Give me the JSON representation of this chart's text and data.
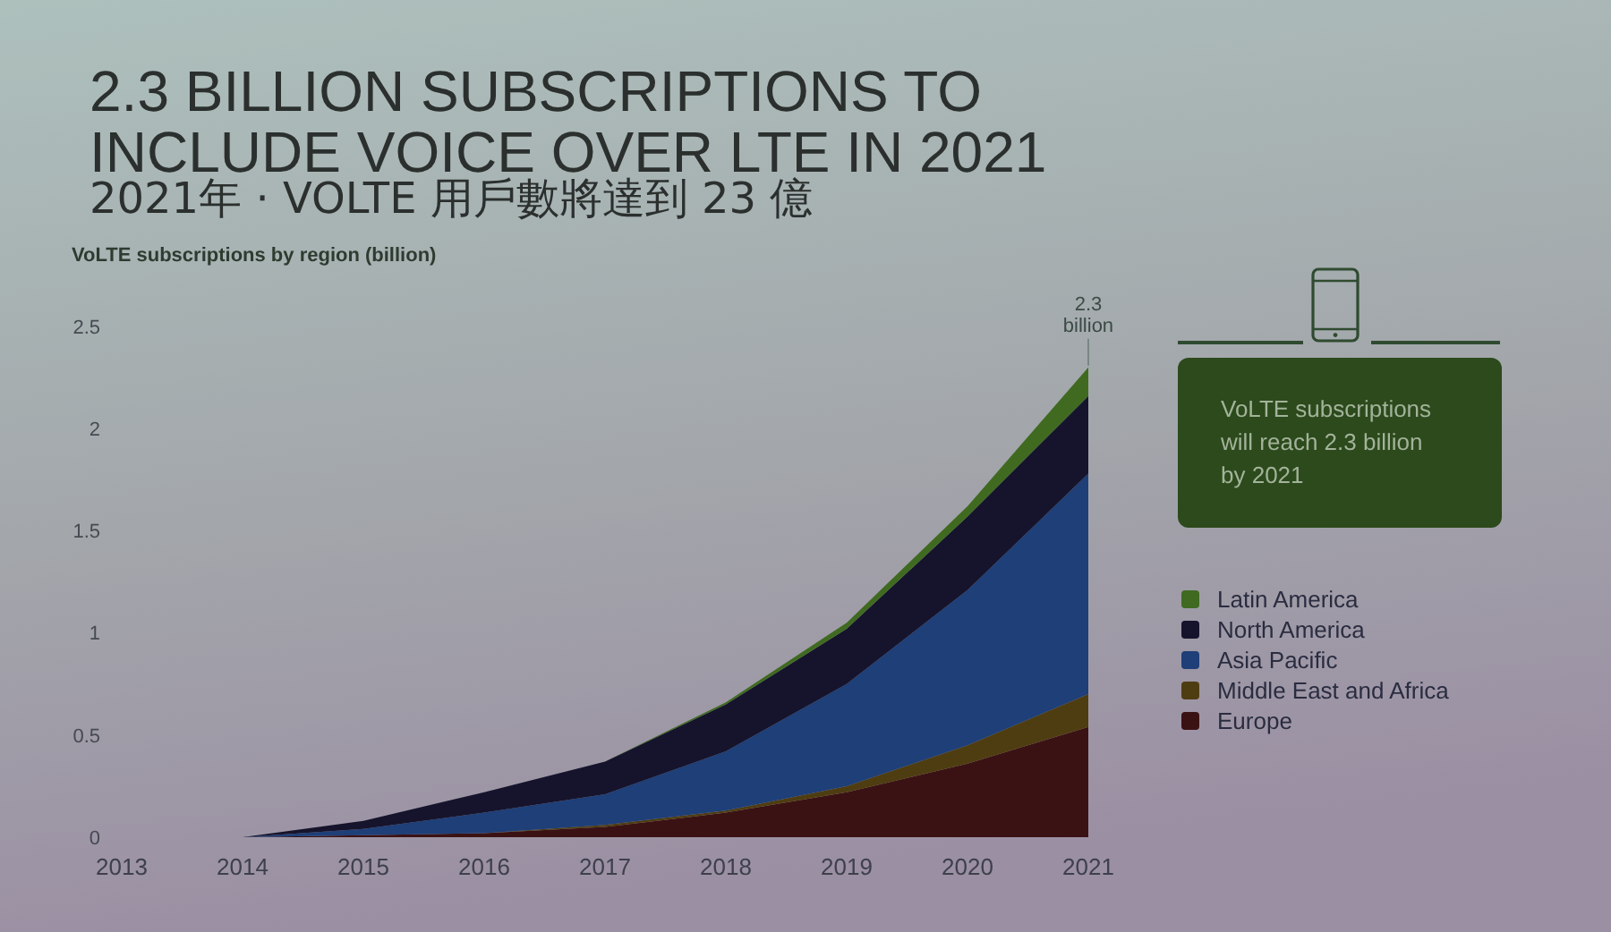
{
  "chart_data": {
    "type": "area",
    "title": "2.3 BILLION SUBSCRIPTIONS TO INCLUDE VOICE OVER LTE IN 2021",
    "subtitle": "2021年 · VOLTE 用戶數將達到 23 億",
    "ylabel": "VoLTE subscriptions by region (billion)",
    "x": [
      2014,
      2015,
      2016,
      2017,
      2018,
      2019,
      2020,
      2021
    ],
    "xlim": [
      2013,
      2021
    ],
    "xticks": [
      2013,
      2014,
      2015,
      2016,
      2017,
      2018,
      2019,
      2020,
      2021
    ],
    "ylim": [
      0,
      2.5
    ],
    "yticks": [
      0,
      0.5,
      1,
      1.5,
      2,
      2.5
    ],
    "stacked": true,
    "legend": "right",
    "series": [
      {
        "name": "Europe",
        "color": "#3b1214",
        "values": [
          0,
          0.01,
          0.02,
          0.05,
          0.12,
          0.22,
          0.36,
          0.54
        ]
      },
      {
        "name": "Middle East and Africa",
        "color": "#4f3d12",
        "values": [
          0,
          0,
          0,
          0.01,
          0.01,
          0.03,
          0.09,
          0.16
        ]
      },
      {
        "name": "Asia Pacific",
        "color": "#1e3f78",
        "values": [
          0,
          0.03,
          0.1,
          0.15,
          0.29,
          0.5,
          0.76,
          1.08
        ]
      },
      {
        "name": "North America",
        "color": "#16142c",
        "values": [
          0,
          0.04,
          0.1,
          0.16,
          0.23,
          0.27,
          0.36,
          0.38
        ]
      },
      {
        "name": "Latin America",
        "color": "#3f6a20",
        "values": [
          0,
          0,
          0,
          0,
          0.01,
          0.03,
          0.05,
          0.14
        ]
      }
    ],
    "annotations": [
      {
        "text": "2.3 billion",
        "x": 2021,
        "y": 2.3
      },
      "VoLTE subscriptions will reach 2.3 billion by 2021"
    ]
  }
}
